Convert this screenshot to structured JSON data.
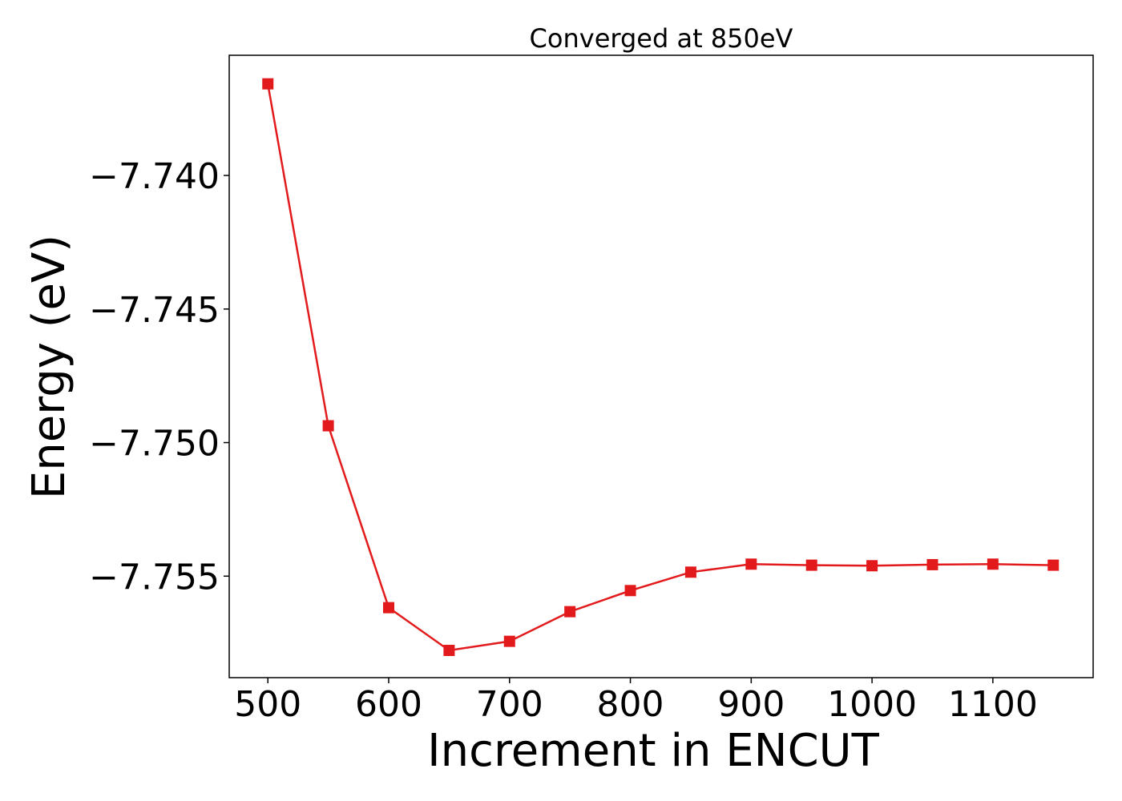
{
  "chart_data": {
    "type": "line",
    "title": "Converged at 850eV",
    "xlabel": "Increment in ENCUT",
    "ylabel": "Energy (eV)",
    "xlim": [
      468,
      1183
    ],
    "ylim": [
      -7.7588,
      -7.7355
    ],
    "xticks": [
      500,
      600,
      700,
      800,
      900,
      1000,
      1100
    ],
    "xtick_labels": [
      "500",
      "600",
      "700",
      "800",
      "900",
      "1000",
      "1100"
    ],
    "yticks": [
      -7.74,
      -7.745,
      -7.75,
      -7.755
    ],
    "ytick_labels": [
      "−7.740",
      "−7.745",
      "−7.750",
      "−7.755"
    ],
    "grid": false,
    "series": [
      {
        "color": "#e31a1c",
        "marker": "square",
        "x": [
          500,
          550,
          600,
          650,
          700,
          750,
          800,
          850,
          900,
          950,
          1000,
          1050,
          1100,
          1150
        ],
        "y": [
          -7.73657,
          -7.74937,
          -7.75618,
          -7.75778,
          -7.75744,
          -7.75633,
          -7.75554,
          -7.75485,
          -7.75455,
          -7.75459,
          -7.75461,
          -7.75457,
          -7.75455,
          -7.75459
        ]
      }
    ]
  }
}
